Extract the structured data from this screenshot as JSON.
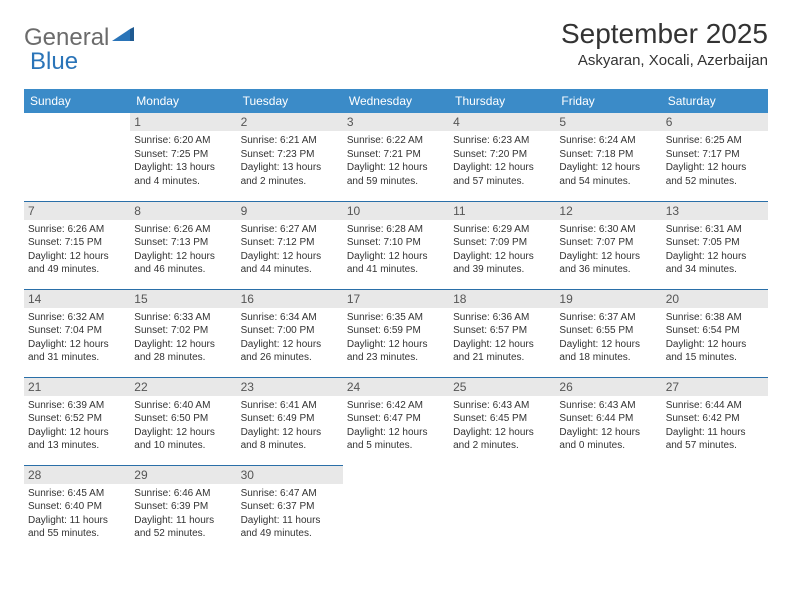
{
  "logo": {
    "text1": "General",
    "text2": "Blue"
  },
  "title": "September 2025",
  "location": "Askyaran, Xocali, Azerbaijan",
  "colors": {
    "header_bg": "#3b8bc8",
    "header_text": "#ffffff",
    "daynum_bg": "#e8e8e8",
    "row_border": "#2a6fa8",
    "logo_gray": "#6b6b6b",
    "logo_blue": "#2a74b8"
  },
  "weekdays": [
    "Sunday",
    "Monday",
    "Tuesday",
    "Wednesday",
    "Thursday",
    "Friday",
    "Saturday"
  ],
  "weeks": [
    [
      {
        "day": "",
        "sunrise": "",
        "sunset": "",
        "daylight": ""
      },
      {
        "day": "1",
        "sunrise": "Sunrise: 6:20 AM",
        "sunset": "Sunset: 7:25 PM",
        "daylight": "Daylight: 13 hours and 4 minutes."
      },
      {
        "day": "2",
        "sunrise": "Sunrise: 6:21 AM",
        "sunset": "Sunset: 7:23 PM",
        "daylight": "Daylight: 13 hours and 2 minutes."
      },
      {
        "day": "3",
        "sunrise": "Sunrise: 6:22 AM",
        "sunset": "Sunset: 7:21 PM",
        "daylight": "Daylight: 12 hours and 59 minutes."
      },
      {
        "day": "4",
        "sunrise": "Sunrise: 6:23 AM",
        "sunset": "Sunset: 7:20 PM",
        "daylight": "Daylight: 12 hours and 57 minutes."
      },
      {
        "day": "5",
        "sunrise": "Sunrise: 6:24 AM",
        "sunset": "Sunset: 7:18 PM",
        "daylight": "Daylight: 12 hours and 54 minutes."
      },
      {
        "day": "6",
        "sunrise": "Sunrise: 6:25 AM",
        "sunset": "Sunset: 7:17 PM",
        "daylight": "Daylight: 12 hours and 52 minutes."
      }
    ],
    [
      {
        "day": "7",
        "sunrise": "Sunrise: 6:26 AM",
        "sunset": "Sunset: 7:15 PM",
        "daylight": "Daylight: 12 hours and 49 minutes."
      },
      {
        "day": "8",
        "sunrise": "Sunrise: 6:26 AM",
        "sunset": "Sunset: 7:13 PM",
        "daylight": "Daylight: 12 hours and 46 minutes."
      },
      {
        "day": "9",
        "sunrise": "Sunrise: 6:27 AM",
        "sunset": "Sunset: 7:12 PM",
        "daylight": "Daylight: 12 hours and 44 minutes."
      },
      {
        "day": "10",
        "sunrise": "Sunrise: 6:28 AM",
        "sunset": "Sunset: 7:10 PM",
        "daylight": "Daylight: 12 hours and 41 minutes."
      },
      {
        "day": "11",
        "sunrise": "Sunrise: 6:29 AM",
        "sunset": "Sunset: 7:09 PM",
        "daylight": "Daylight: 12 hours and 39 minutes."
      },
      {
        "day": "12",
        "sunrise": "Sunrise: 6:30 AM",
        "sunset": "Sunset: 7:07 PM",
        "daylight": "Daylight: 12 hours and 36 minutes."
      },
      {
        "day": "13",
        "sunrise": "Sunrise: 6:31 AM",
        "sunset": "Sunset: 7:05 PM",
        "daylight": "Daylight: 12 hours and 34 minutes."
      }
    ],
    [
      {
        "day": "14",
        "sunrise": "Sunrise: 6:32 AM",
        "sunset": "Sunset: 7:04 PM",
        "daylight": "Daylight: 12 hours and 31 minutes."
      },
      {
        "day": "15",
        "sunrise": "Sunrise: 6:33 AM",
        "sunset": "Sunset: 7:02 PM",
        "daylight": "Daylight: 12 hours and 28 minutes."
      },
      {
        "day": "16",
        "sunrise": "Sunrise: 6:34 AM",
        "sunset": "Sunset: 7:00 PM",
        "daylight": "Daylight: 12 hours and 26 minutes."
      },
      {
        "day": "17",
        "sunrise": "Sunrise: 6:35 AM",
        "sunset": "Sunset: 6:59 PM",
        "daylight": "Daylight: 12 hours and 23 minutes."
      },
      {
        "day": "18",
        "sunrise": "Sunrise: 6:36 AM",
        "sunset": "Sunset: 6:57 PM",
        "daylight": "Daylight: 12 hours and 21 minutes."
      },
      {
        "day": "19",
        "sunrise": "Sunrise: 6:37 AM",
        "sunset": "Sunset: 6:55 PM",
        "daylight": "Daylight: 12 hours and 18 minutes."
      },
      {
        "day": "20",
        "sunrise": "Sunrise: 6:38 AM",
        "sunset": "Sunset: 6:54 PM",
        "daylight": "Daylight: 12 hours and 15 minutes."
      }
    ],
    [
      {
        "day": "21",
        "sunrise": "Sunrise: 6:39 AM",
        "sunset": "Sunset: 6:52 PM",
        "daylight": "Daylight: 12 hours and 13 minutes."
      },
      {
        "day": "22",
        "sunrise": "Sunrise: 6:40 AM",
        "sunset": "Sunset: 6:50 PM",
        "daylight": "Daylight: 12 hours and 10 minutes."
      },
      {
        "day": "23",
        "sunrise": "Sunrise: 6:41 AM",
        "sunset": "Sunset: 6:49 PM",
        "daylight": "Daylight: 12 hours and 8 minutes."
      },
      {
        "day": "24",
        "sunrise": "Sunrise: 6:42 AM",
        "sunset": "Sunset: 6:47 PM",
        "daylight": "Daylight: 12 hours and 5 minutes."
      },
      {
        "day": "25",
        "sunrise": "Sunrise: 6:43 AM",
        "sunset": "Sunset: 6:45 PM",
        "daylight": "Daylight: 12 hours and 2 minutes."
      },
      {
        "day": "26",
        "sunrise": "Sunrise: 6:43 AM",
        "sunset": "Sunset: 6:44 PM",
        "daylight": "Daylight: 12 hours and 0 minutes."
      },
      {
        "day": "27",
        "sunrise": "Sunrise: 6:44 AM",
        "sunset": "Sunset: 6:42 PM",
        "daylight": "Daylight: 11 hours and 57 minutes."
      }
    ],
    [
      {
        "day": "28",
        "sunrise": "Sunrise: 6:45 AM",
        "sunset": "Sunset: 6:40 PM",
        "daylight": "Daylight: 11 hours and 55 minutes."
      },
      {
        "day": "29",
        "sunrise": "Sunrise: 6:46 AM",
        "sunset": "Sunset: 6:39 PM",
        "daylight": "Daylight: 11 hours and 52 minutes."
      },
      {
        "day": "30",
        "sunrise": "Sunrise: 6:47 AM",
        "sunset": "Sunset: 6:37 PM",
        "daylight": "Daylight: 11 hours and 49 minutes."
      },
      {
        "day": "",
        "sunrise": "",
        "sunset": "",
        "daylight": ""
      },
      {
        "day": "",
        "sunrise": "",
        "sunset": "",
        "daylight": ""
      },
      {
        "day": "",
        "sunrise": "",
        "sunset": "",
        "daylight": ""
      },
      {
        "day": "",
        "sunrise": "",
        "sunset": "",
        "daylight": ""
      }
    ]
  ]
}
